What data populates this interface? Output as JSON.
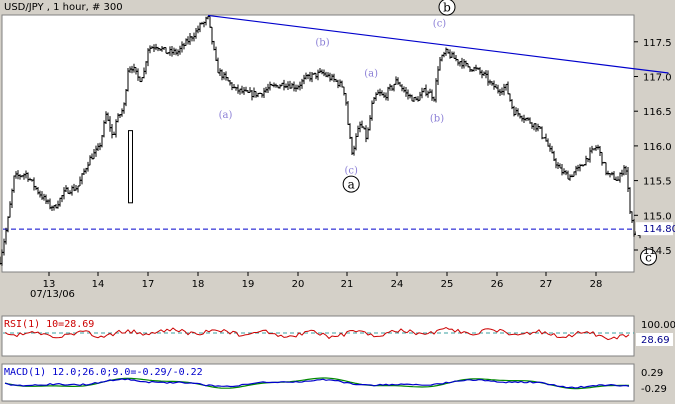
{
  "header": {
    "title": "USD/JPY , 1 hour, # 300"
  },
  "chart_data": [
    {
      "type": "candlestick",
      "title": "USD/JPY , 1 hour, # 300",
      "x_tick_labels": [
        {
          "label": "13",
          "day": 13
        },
        {
          "label": "14",
          "day": 14
        },
        {
          "label": "17",
          "day": 17
        },
        {
          "label": "18",
          "day": 18
        },
        {
          "label": "19",
          "day": 19
        },
        {
          "label": "20",
          "day": 20
        },
        {
          "label": "21",
          "day": 21
        },
        {
          "label": "24",
          "day": 24
        },
        {
          "label": "25",
          "day": 25
        },
        {
          "label": "26",
          "day": 26
        },
        {
          "label": "27",
          "day": 27
        },
        {
          "label": "28",
          "day": 28
        }
      ],
      "date_label": "07/13/06",
      "y_ticks": [
        "114.5",
        "115.0",
        "115.5",
        "116.0",
        "116.5",
        "117.0",
        "117.5"
      ],
      "ylim": [
        114.22,
        117.97
      ],
      "price_path": [
        [
          12.0,
          114.35
        ],
        [
          12.15,
          114.85
        ],
        [
          12.3,
          115.55
        ],
        [
          12.55,
          115.6
        ],
        [
          12.8,
          115.35
        ],
        [
          13.1,
          115.1
        ],
        [
          13.35,
          115.35
        ],
        [
          13.6,
          115.4
        ],
        [
          13.85,
          115.8
        ],
        [
          14.1,
          116.0
        ],
        [
          14.3,
          116.2
        ],
        [
          14.5,
          116.45
        ],
        [
          14.7,
          116.3
        ],
        [
          14.9,
          116.1
        ],
        [
          15.1,
          116.35
        ],
        [
          15.35,
          116.45
        ],
        [
          15.6,
          116.6
        ],
        [
          15.8,
          117.1
        ],
        [
          16.05,
          117.15
        ],
        [
          16.25,
          117.05
        ],
        [
          16.5,
          116.95
        ],
        [
          16.75,
          117.05
        ],
        [
          17.0,
          117.4
        ],
        [
          17.2,
          117.45
        ],
        [
          17.4,
          117.35
        ],
        [
          17.6,
          117.35
        ],
        [
          17.8,
          117.5
        ],
        [
          18.0,
          117.65
        ],
        [
          18.2,
          117.85
        ],
        [
          18.4,
          117.1
        ],
        [
          18.6,
          116.95
        ],
        [
          18.8,
          116.8
        ],
        [
          19.0,
          116.75
        ],
        [
          19.25,
          116.75
        ],
        [
          19.5,
          116.85
        ],
        [
          19.75,
          116.9
        ],
        [
          20.0,
          116.85
        ],
        [
          20.25,
          117.0
        ],
        [
          20.5,
          117.05
        ],
        [
          20.75,
          116.95
        ],
        [
          20.95,
          116.85
        ],
        [
          21.1,
          116.3
        ],
        [
          21.25,
          115.9
        ],
        [
          21.45,
          116.0
        ],
        [
          21.6,
          116.15
        ],
        [
          21.8,
          116.3
        ],
        [
          21.95,
          116.25
        ],
        [
          22.2,
          116.1
        ],
        [
          22.35,
          116.3
        ],
        [
          22.55,
          116.6
        ],
        [
          22.8,
          116.75
        ],
        [
          23.0,
          116.75
        ],
        [
          23.25,
          116.7
        ],
        [
          23.5,
          116.8
        ],
        [
          23.75,
          116.85
        ],
        [
          24.0,
          116.95
        ],
        [
          24.2,
          116.75
        ],
        [
          24.4,
          116.65
        ],
        [
          24.6,
          116.8
        ],
        [
          24.75,
          116.7
        ],
        [
          24.85,
          117.2
        ],
        [
          25.0,
          117.35
        ],
        [
          25.2,
          117.25
        ],
        [
          25.4,
          117.15
        ],
        [
          25.6,
          117.1
        ],
        [
          25.8,
          117.0
        ],
        [
          26.0,
          116.8
        ],
        [
          26.2,
          116.85
        ],
        [
          26.35,
          116.5
        ],
        [
          26.5,
          116.45
        ],
        [
          26.7,
          116.35
        ],
        [
          26.9,
          116.25
        ],
        [
          27.1,
          115.9
        ],
        [
          27.3,
          115.65
        ],
        [
          27.5,
          115.55
        ],
        [
          27.7,
          115.7
        ],
        [
          27.85,
          115.85
        ],
        [
          28.05,
          116.0
        ],
        [
          28.25,
          115.6
        ],
        [
          28.45,
          115.5
        ],
        [
          28.6,
          115.75
        ],
        [
          28.7,
          115.1
        ],
        [
          28.8,
          114.7
        ],
        [
          28.95,
          114.78
        ]
      ],
      "spike_bar": {
        "day": 15.95,
        "high": 116.22,
        "low": 115.18
      },
      "trendline": {
        "from": [
          18.2,
          117.88
        ],
        "to": [
          29.45,
          117.05
        ]
      },
      "support_line": {
        "price": 114.8,
        "label": "114.80"
      },
      "wave_labels": [
        {
          "text": "(a)",
          "day": 18.55,
          "price": 116.4,
          "kind": "minor"
        },
        {
          "text": "(b)",
          "day": 20.5,
          "price": 117.45,
          "kind": "minor"
        },
        {
          "text": "(c)",
          "day": 21.25,
          "price": 115.6,
          "kind": "minor"
        },
        {
          "text": "(a)",
          "day": 22.45,
          "price": 117.0,
          "kind": "minor"
        },
        {
          "text": "(b)",
          "day": 24.8,
          "price": 116.35,
          "kind": "minor"
        },
        {
          "text": "(c)",
          "day": 24.85,
          "price": 117.72,
          "kind": "minor"
        },
        {
          "text": "a",
          "day": 21.25,
          "price": 115.45,
          "kind": "major"
        },
        {
          "text": "b",
          "day": 25.0,
          "price": 118.0,
          "kind": "major"
        },
        {
          "text": "c",
          "day": 29.05,
          "price": 114.4,
          "kind": "major"
        }
      ]
    },
    {
      "type": "line",
      "title": "RSI(1) 10=28.69",
      "series": [
        {
          "name": "RSI",
          "color": "#cc0000"
        }
      ],
      "levels": [
        {
          "label": "100.00"
        },
        {
          "label": "28.69",
          "highlight": true
        }
      ],
      "last_value": 28.69
    },
    {
      "type": "line",
      "title": "MACD(1) 12.0;26.0;9.0=-0.29/-0.22",
      "series": [
        {
          "name": "MACD",
          "color": "#0000cc",
          "last": -0.29
        },
        {
          "name": "Signal",
          "color": "#008800",
          "last": -0.22
        }
      ],
      "levels": [
        {
          "label": "0.29"
        },
        {
          "label": "-0.29"
        }
      ]
    }
  ],
  "colors": {
    "trendline": "#0000cc",
    "support": "#0000cc",
    "wave_minor": "#8b7fd6",
    "bars": "#000000",
    "rsi": "#cc0000",
    "rsi_level": "#3aa0a0",
    "macd": "#0000cc",
    "signal": "#008800"
  }
}
